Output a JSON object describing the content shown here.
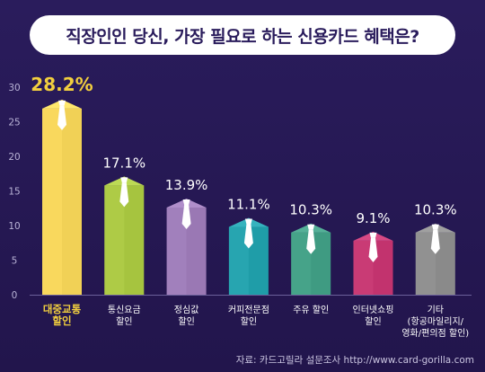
{
  "chart_data": {
    "type": "bar",
    "title": "직장인인 당신, 가장 필요로 하는 신용카드 혜택은?",
    "categories": [
      [
        "대중교통",
        "할인"
      ],
      [
        "통신요금",
        "할인"
      ],
      [
        "정심값",
        "할인"
      ],
      [
        "커피전문점",
        "할인"
      ],
      [
        "주유 할인"
      ],
      [
        "인터넷쇼핑",
        "할인"
      ],
      [
        "기타",
        "(항공마일리지/",
        "영화/편의점 할인)"
      ]
    ],
    "values": [
      28.2,
      17.1,
      13.9,
      11.1,
      10.3,
      9.1,
      10.3
    ],
    "value_labels": [
      "28.2%",
      "17.1%",
      "13.9%",
      "11.1%",
      "10.3%",
      "9.1%",
      "10.3%"
    ],
    "ylim": [
      0,
      30
    ],
    "yticks": [
      "0",
      "5",
      "10",
      "15",
      "20",
      "25",
      "30"
    ],
    "grid": false,
    "highlight_index": 0,
    "colors": [
      "#f1d156",
      "#a6c43f",
      "#9a78b4",
      "#1f9da8",
      "#3f9b82",
      "#c2336e",
      "#8a8a8a"
    ],
    "label_colors": {
      "highlight": "#f2cf3e",
      "normal": "#ffffff",
      "axis": "#b9b3d6"
    }
  },
  "source": "자료: 카드고릴라 설문조사 http://www.card-gorilla.com"
}
